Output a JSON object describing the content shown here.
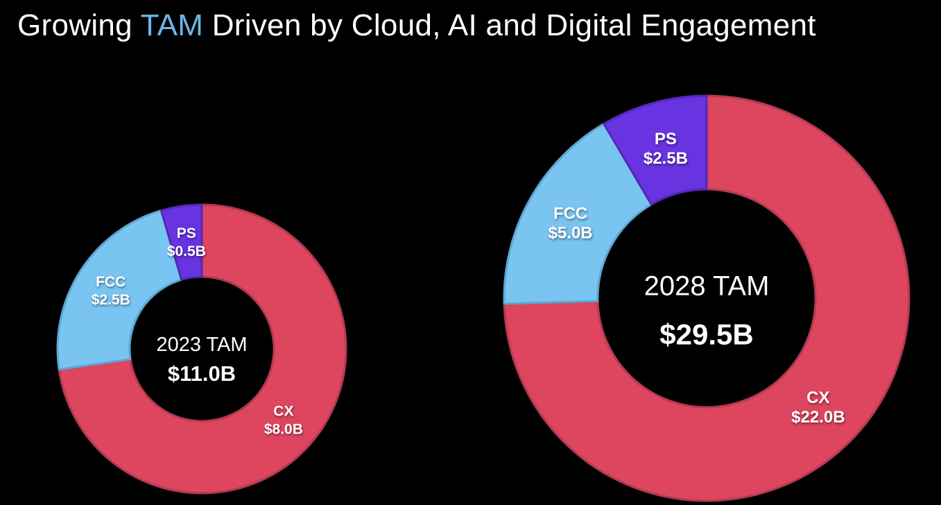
{
  "page": {
    "background": "#000000"
  },
  "title": {
    "prefix": "Growing ",
    "highlight": "TAM",
    "suffix": " Driven by Cloud, AI and Digital Engagement",
    "text_color": "#FFFFFF",
    "highlight_color": "#6CB5EA"
  },
  "chart_data": [
    {
      "type": "pie",
      "variant": "donut",
      "title": "2023 TAM",
      "center_label": {
        "line1": "2023 TAM",
        "line2": "$11.0B"
      },
      "total_value": 11.0,
      "start_angle": "top",
      "direction": "clockwise",
      "labels_position": "inside-ring",
      "legend": "none",
      "slices": [
        {
          "name": "CX",
          "label": "CX",
          "value": 8.0,
          "value_label": "$8.0B",
          "color": "#DE455F",
          "border_color": "#AE3A51"
        },
        {
          "name": "FCC",
          "label": "FCC",
          "value": 2.5,
          "value_label": "$2.5B",
          "color": "#79C4F0",
          "border_color": "#5CA6CE"
        },
        {
          "name": "PS",
          "label": "PS",
          "value": 0.5,
          "value_label": "$0.5B",
          "color": "#6833E1",
          "border_color": "#5328B6"
        }
      ]
    },
    {
      "type": "pie",
      "variant": "donut",
      "title": "2028 TAM",
      "center_label": {
        "line1": "2028 TAM",
        "line2": "$29.5B"
      },
      "total_value": 29.5,
      "start_angle": "top",
      "direction": "clockwise",
      "labels_position": "inside-ring",
      "legend": "none",
      "slices": [
        {
          "name": "CX",
          "label": "CX",
          "value": 22.0,
          "value_label": "$22.0B",
          "color": "#DE455F",
          "border_color": "#AE3A51"
        },
        {
          "name": "FCC",
          "label": "FCC",
          "value": 5.0,
          "value_label": "$5.0B",
          "color": "#79C4F0",
          "border_color": "#5CA6CE"
        },
        {
          "name": "PS",
          "label": "PS",
          "value": 2.5,
          "value_label": "$2.5B",
          "color": "#6833E1",
          "border_color": "#5328B6"
        }
      ]
    }
  ]
}
